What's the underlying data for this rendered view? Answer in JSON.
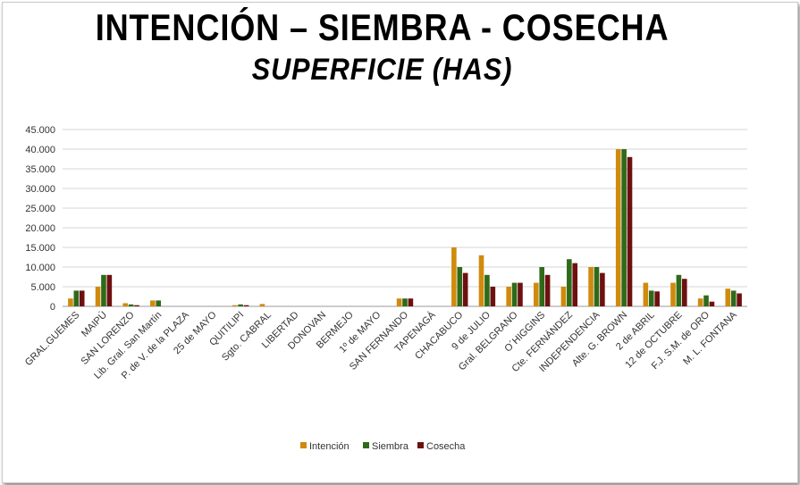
{
  "header": {
    "title": "INTENCIÓN – SIEMBRA - COSECHA",
    "subtitle": "SUPERFICIE (HAS)"
  },
  "colors": {
    "Intención": "#d08a0d",
    "Siembra": "#2f6a1a",
    "Cosecha": "#6e1010",
    "grid": "#d4d4d4",
    "axis": "#9a9a9a"
  },
  "chart_data": {
    "type": "bar",
    "title": "INTENCIÓN – SIEMBRA - COSECHA",
    "subtitle": "SUPERFICIE (HAS)",
    "xlabel": "",
    "ylabel": "",
    "ylim": [
      0,
      45000
    ],
    "ytick_labels": [
      "0",
      "5.000",
      "10.000",
      "15.000",
      "20.000",
      "25.000",
      "30.000",
      "35.000",
      "40.000",
      "45.000"
    ],
    "grid": true,
    "legend_position": "bottom",
    "categories": [
      "GRAL.GUEMES",
      "MAIPÚ",
      "SAN LORENZO",
      "Lib. Gral. San Martín",
      "P. de V. de la PLAZA",
      "25 de MAYO",
      "QUITILIPI",
      "Sgto. CABRAL",
      "LIBERTAD",
      "DONOVAN",
      "BERMEJO",
      "1º de MAYO",
      "SAN FERNANDO",
      "TAPENAGÁ",
      "CHACABUCO",
      "9 de JULIO",
      "Gral. BELGRANO",
      "O´HIGGINS",
      "Cte. FERNÁNDEZ",
      "INDEPENDENCIA",
      "Alte. G. BROWN",
      "2 de ABRIL",
      "12 de OCTUBRE",
      "F.J. S.M. de ORO",
      "M. L. FONTANA"
    ],
    "series": [
      {
        "name": "Intención",
        "values": [
          2000,
          5000,
          800,
          1500,
          0,
          0,
          300,
          600,
          0,
          0,
          0,
          0,
          2000,
          0,
          15000,
          13000,
          5000,
          6000,
          5000,
          10000,
          40000,
          6000,
          6000,
          2000,
          4500
        ]
      },
      {
        "name": "Siembra",
        "values": [
          4000,
          8000,
          500,
          1500,
          0,
          0,
          500,
          0,
          0,
          0,
          0,
          0,
          2000,
          0,
          10000,
          8000,
          6000,
          10000,
          12000,
          10000,
          40000,
          4000,
          8000,
          2800,
          4000
        ]
      },
      {
        "name": "Cosecha",
        "values": [
          4000,
          8000,
          300,
          0,
          0,
          0,
          300,
          0,
          0,
          0,
          0,
          0,
          2000,
          0,
          8500,
          5000,
          6000,
          8000,
          11000,
          8500,
          38000,
          3800,
          7000,
          1200,
          3300
        ]
      }
    ]
  }
}
